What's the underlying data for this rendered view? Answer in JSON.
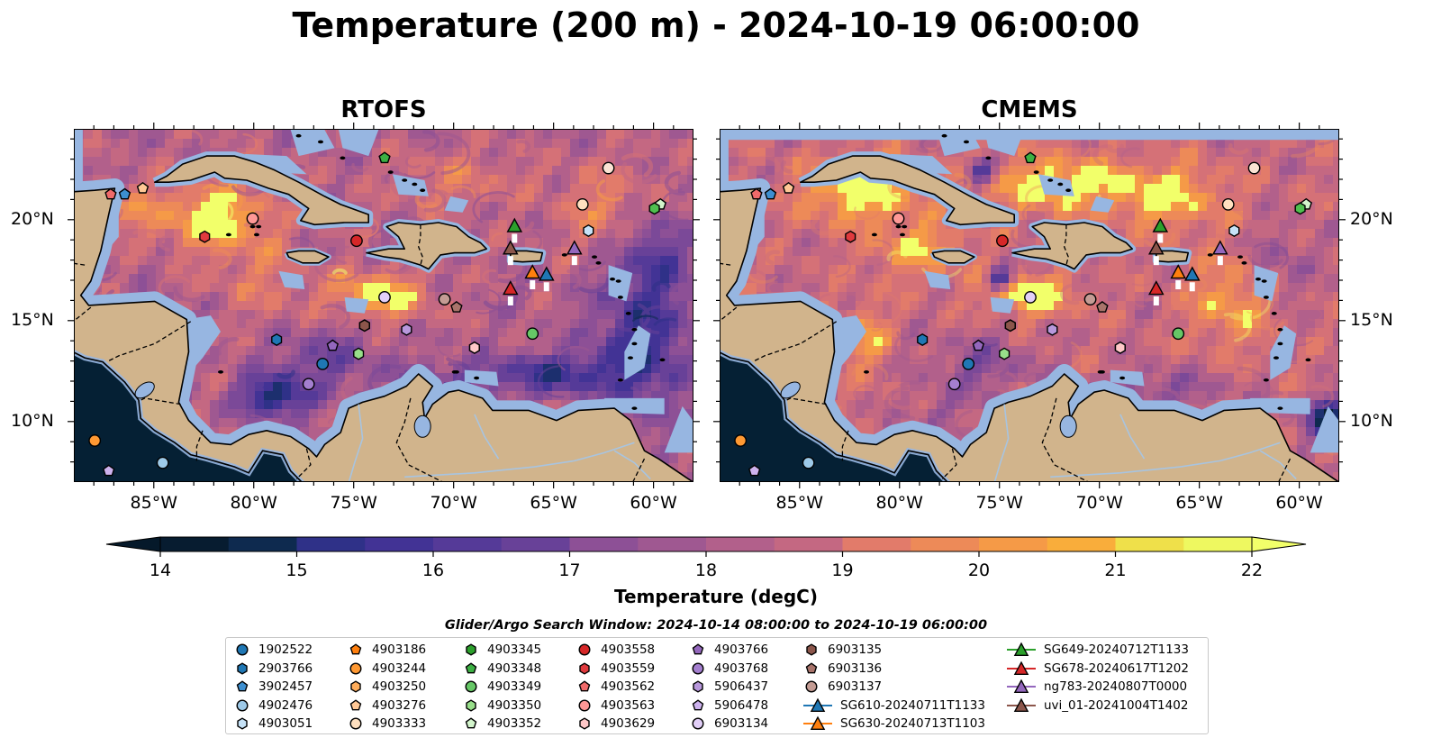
{
  "title": "Temperature (200 m) - 2024-10-19 06:00:00",
  "panels": [
    {
      "id": "rtofs",
      "title": "RTOFS"
    },
    {
      "id": "cmems",
      "title": "CMEMS"
    }
  ],
  "map_extent": {
    "lon": [
      -89,
      -58
    ],
    "lat": [
      7,
      24.5
    ]
  },
  "lon_ticks": [
    {
      "value": -85,
      "label": "85°W"
    },
    {
      "value": -80,
      "label": "80°W"
    },
    {
      "value": -75,
      "label": "75°W"
    },
    {
      "value": -70,
      "label": "70°W"
    },
    {
      "value": -65,
      "label": "65°W"
    },
    {
      "value": -60,
      "label": "60°W"
    }
  ],
  "lat_ticks": [
    {
      "value": 20,
      "label": "20°N"
    },
    {
      "value": 15,
      "label": "15°N"
    },
    {
      "value": 10,
      "label": "10°N"
    }
  ],
  "colorbar": {
    "label": "Temperature (degC)",
    "min": 14,
    "max": 22,
    "step": 0.5,
    "ticks": [
      "14",
      "15",
      "16",
      "17",
      "18",
      "19",
      "20",
      "21",
      "22"
    ],
    "extend": "both",
    "colors": [
      "#071c30",
      "#0e2a4f",
      "#1c2f6e",
      "#2f3188",
      "#423395",
      "#553a98",
      "#684198",
      "#7b4998",
      "#8d5096",
      "#9f5891",
      "#b2608b",
      "#c46882",
      "#d57177",
      "#e27b6a",
      "#ed8a58",
      "#f59a47",
      "#f9ad3b",
      "#f6c43a",
      "#efe04a",
      "#eef860"
    ],
    "over": "#f2ff6a",
    "under": "#05192a"
  },
  "colors": {
    "ocean_shallow": "#97b6e1",
    "land": "#d1b48c",
    "coast": "#000000",
    "river": "#a8c4e0"
  },
  "legend": {
    "title": "Glider/Argo Search Window: 2024-10-14 08:00:00 to 2024-10-19 06:00:00",
    "items": [
      {
        "label": "1902522",
        "marker": "circle",
        "color": "#1f77b4"
      },
      {
        "label": "2903766",
        "marker": "hexagon",
        "color": "#1f77b4"
      },
      {
        "label": "3902457",
        "marker": "pentagon",
        "color": "#3d8fd0"
      },
      {
        "label": "4902476",
        "marker": "circle",
        "color": "#9ecae9"
      },
      {
        "label": "4903051",
        "marker": "hexagon",
        "color": "#c6e2f7"
      },
      {
        "label": "4903186",
        "marker": "pentagon",
        "color": "#ff7f0e"
      },
      {
        "label": "4903244",
        "marker": "circle",
        "color": "#ff9933"
      },
      {
        "label": "4903250",
        "marker": "hexagon",
        "color": "#ffad5b"
      },
      {
        "label": "4903276",
        "marker": "pentagon",
        "color": "#ffc896"
      },
      {
        "label": "4903333",
        "marker": "circle",
        "color": "#ffe0c0"
      },
      {
        "label": "4903345",
        "marker": "hexagon",
        "color": "#2ca02c"
      },
      {
        "label": "4903348",
        "marker": "pentagon",
        "color": "#3cb043"
      },
      {
        "label": "4903349",
        "marker": "circle",
        "color": "#66c766"
      },
      {
        "label": "4903350",
        "marker": "hexagon",
        "color": "#98df8a"
      },
      {
        "label": "4903352",
        "marker": "pentagon",
        "color": "#d3f5cc"
      },
      {
        "label": "4903558",
        "marker": "circle",
        "color": "#d62728"
      },
      {
        "label": "4903559",
        "marker": "hexagon",
        "color": "#e03a3e"
      },
      {
        "label": "4903562",
        "marker": "pentagon",
        "color": "#f06a6a"
      },
      {
        "label": "4903563",
        "marker": "circle",
        "color": "#ff9896"
      },
      {
        "label": "4903629",
        "marker": "hexagon",
        "color": "#ffc8c8"
      },
      {
        "label": "4903766",
        "marker": "pentagon",
        "color": "#9467bd"
      },
      {
        "label": "4903768",
        "marker": "circle",
        "color": "#a47fcf"
      },
      {
        "label": "5906437",
        "marker": "hexagon",
        "color": "#b898dc"
      },
      {
        "label": "5906478",
        "marker": "pentagon",
        "color": "#cdb2ee"
      },
      {
        "label": "6903134",
        "marker": "circle",
        "color": "#e2cff8"
      },
      {
        "label": "6903135",
        "marker": "hexagon",
        "color": "#8c564b"
      },
      {
        "label": "6903136",
        "marker": "pentagon",
        "color": "#a9746b"
      },
      {
        "label": "6903137",
        "marker": "circle",
        "color": "#c49c94"
      },
      {
        "label": "SG610-20240711T1133",
        "marker": "triangle-line",
        "color": "#1f77b4"
      },
      {
        "label": "SG630-20240713T1103",
        "marker": "triangle-line",
        "color": "#ff7f0e"
      },
      {
        "label": "SG649-20240712T1133",
        "marker": "triangle-line",
        "color": "#2ca02c"
      },
      {
        "label": "SG678-20240617T1202",
        "marker": "triangle-line",
        "color": "#d62728"
      },
      {
        "label": "ng783-20240807T0000",
        "marker": "triangle-line",
        "color": "#9467bd"
      },
      {
        "label": "uvi_01-20241004T1402",
        "marker": "triangle-line",
        "color": "#8c564b"
      }
    ]
  },
  "argo_positions": [
    {
      "id": "1902522",
      "lon": -76.6,
      "lat": 12.9
    },
    {
      "id": "2903766",
      "lon": -78.9,
      "lat": 14.1
    },
    {
      "id": "3902457",
      "lon": -86.5,
      "lat": 21.3
    },
    {
      "id": "4902476",
      "lon": -84.6,
      "lat": 8.0
    },
    {
      "id": "4903051",
      "lon": -63.3,
      "lat": 19.5
    },
    {
      "id": "4903186",
      "lon": -88.0,
      "lat": 9.1
    },
    {
      "id": "4903244",
      "lon": -88.0,
      "lat": 9.1
    },
    {
      "id": "4903250",
      "lon": -69.0,
      "lat": 13.7
    },
    {
      "id": "4903276",
      "lon": -85.6,
      "lat": 21.6
    },
    {
      "id": "4903333",
      "lon": -63.6,
      "lat": 20.8
    },
    {
      "id": "4903345",
      "lon": -74.5,
      "lat": 14.8
    },
    {
      "id": "4903348",
      "lon": -73.5,
      "lat": 23.1
    },
    {
      "id": "4903349",
      "lon": -66.1,
      "lat": 14.4
    },
    {
      "id": "4903350",
      "lon": -74.8,
      "lat": 13.4
    },
    {
      "id": "4903352",
      "lon": -59.7,
      "lat": 20.8
    },
    {
      "id": "4903558",
      "lon": -74.9,
      "lat": 19.0
    },
    {
      "id": "4903559",
      "lon": -82.5,
      "lat": 19.2
    },
    {
      "id": "4903562",
      "lon": -87.2,
      "lat": 21.3
    },
    {
      "id": "4903563",
      "lon": -80.1,
      "lat": 20.1
    },
    {
      "id": "4903629",
      "lon": -69.0,
      "lat": 13.7
    },
    {
      "id": "4903766",
      "lon": -76.1,
      "lat": 13.8
    },
    {
      "id": "4903768",
      "lon": -77.3,
      "lat": 11.9
    },
    {
      "id": "5906437",
      "lon": -72.4,
      "lat": 14.6
    },
    {
      "id": "5906478",
      "lon": -87.3,
      "lat": 7.6
    },
    {
      "id": "6903134",
      "lon": -73.5,
      "lat": 16.2
    },
    {
      "id": "6903135",
      "lon": -74.5,
      "lat": 14.8
    },
    {
      "id": "6903136",
      "lon": -69.9,
      "lat": 15.7
    },
    {
      "id": "6903137",
      "lon": -70.5,
      "lat": 16.1
    },
    {
      "id": "extra-green-hex",
      "lon": -60.0,
      "lat": 20.6
    },
    {
      "id": "extra-white-circle",
      "lon": -62.3,
      "lat": 22.6
    }
  ],
  "glider_positions": [
    {
      "id": "SG610-20240711T1133",
      "lon": -65.4,
      "lat": 17.3
    },
    {
      "id": "SG630-20240713T1103",
      "lon": -66.1,
      "lat": 17.4
    },
    {
      "id": "SG649-20240712T1133",
      "lon": -67.0,
      "lat": 19.7
    },
    {
      "id": "SG678-20240617T1202",
      "lon": -67.2,
      "lat": 16.6
    },
    {
      "id": "ng783-20240807T0000",
      "lon": -64.0,
      "lat": 18.6
    },
    {
      "id": "uvi_01-20241004T1402",
      "lon": -67.2,
      "lat": 18.6
    }
  ]
}
